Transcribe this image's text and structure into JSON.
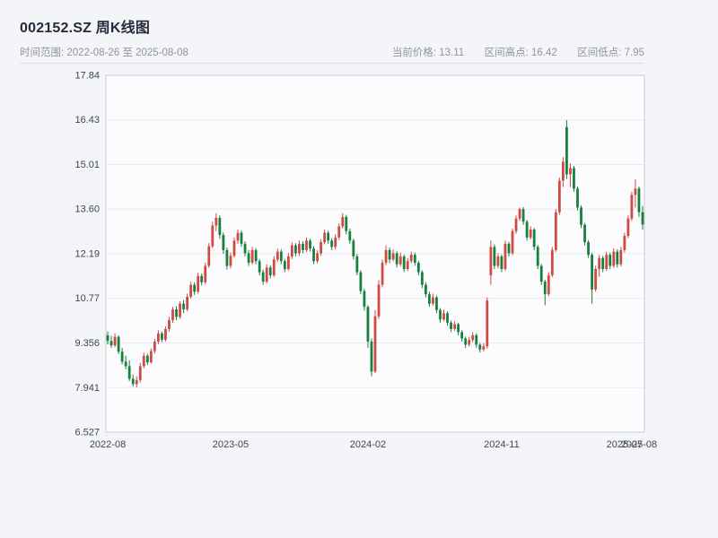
{
  "header": {
    "title": "002152.SZ 周K线图",
    "time_range": "时间范围: 2022-08-26 至 2025-08-08",
    "stats": {
      "current_price": "当前价格: 13.11",
      "range_high": "区间高点: 16.42",
      "range_low": "区间低点: 7.95"
    }
  },
  "chart_data": {
    "type": "candlestick",
    "symbol": "002152.SZ",
    "interval": "weekly",
    "title": "002152.SZ 周K线图",
    "date_range": [
      "2022-08-26",
      "2025-08-08"
    ],
    "current_price": 13.11,
    "range_high": 16.42,
    "range_low": 7.95,
    "y_min": 6.527,
    "y_max": 17.84,
    "y_ticks": [
      "6.527",
      "7.941",
      "9.356",
      "10.77",
      "12.19",
      "13.60",
      "15.01",
      "16.43",
      "17.84"
    ],
    "x_ticks": [
      {
        "label": "2022-08",
        "index": 0
      },
      {
        "label": "2023-05",
        "index": 34
      },
      {
        "label": "2024-02",
        "index": 72
      },
      {
        "label": "2024-11",
        "index": 109
      },
      {
        "label": "2025-07",
        "index": 143
      },
      {
        "label": "2025-08",
        "index": 147
      }
    ],
    "grid": true,
    "legend": false,
    "colors": {
      "up": "#cf4a42",
      "down": "#17803f",
      "grid": "#e9eaf1",
      "plot_bg": "#fcfcfe",
      "plot_border": "#c7cbd5"
    },
    "columns": [
      "date",
      "open",
      "high",
      "low",
      "close"
    ],
    "candles": [
      [
        "2022-08-26",
        9.6,
        9.72,
        9.31,
        9.42
      ],
      [
        "2022-09-02",
        9.42,
        9.58,
        9.2,
        9.28
      ],
      [
        "2022-09-09",
        9.28,
        9.66,
        9.22,
        9.55
      ],
      [
        "2022-09-16",
        9.55,
        9.6,
        9.0,
        9.08
      ],
      [
        "2022-09-23",
        9.08,
        9.2,
        8.68,
        8.76
      ],
      [
        "2022-09-30",
        8.76,
        8.95,
        8.52,
        8.62
      ],
      [
        "2022-10-14",
        8.62,
        8.8,
        8.15,
        8.22
      ],
      [
        "2022-10-21",
        8.22,
        8.35,
        7.98,
        8.05
      ],
      [
        "2022-10-28",
        8.05,
        8.3,
        7.95,
        8.18
      ],
      [
        "2022-11-04",
        8.18,
        8.72,
        8.1,
        8.62
      ],
      [
        "2022-11-11",
        8.62,
        9.05,
        8.55,
        8.95
      ],
      [
        "2022-11-18",
        8.95,
        9.02,
        8.66,
        8.74
      ],
      [
        "2022-11-25",
        8.74,
        9.18,
        8.7,
        9.1
      ],
      [
        "2022-12-02",
        9.1,
        9.48,
        9.02,
        9.4
      ],
      [
        "2022-12-09",
        9.4,
        9.76,
        9.32,
        9.66
      ],
      [
        "2022-12-16",
        9.66,
        9.72,
        9.38,
        9.46
      ],
      [
        "2022-12-23",
        9.46,
        9.88,
        9.4,
        9.8
      ],
      [
        "2022-12-30",
        9.8,
        10.18,
        9.72,
        10.08
      ],
      [
        "2023-01-06",
        10.08,
        10.5,
        10.0,
        10.42
      ],
      [
        "2023-01-13",
        10.42,
        10.52,
        10.08,
        10.18
      ],
      [
        "2023-01-20",
        10.18,
        10.68,
        10.12,
        10.6
      ],
      [
        "2023-02-03",
        10.6,
        10.72,
        10.3,
        10.42
      ],
      [
        "2023-02-10",
        10.42,
        10.92,
        10.36,
        10.82
      ],
      [
        "2023-02-17",
        10.82,
        11.3,
        10.76,
        11.2
      ],
      [
        "2023-02-24",
        11.2,
        11.28,
        10.88,
        10.98
      ],
      [
        "2023-03-03",
        10.98,
        11.58,
        10.92,
        11.48
      ],
      [
        "2023-03-10",
        11.48,
        11.56,
        11.18,
        11.28
      ],
      [
        "2023-03-17",
        11.28,
        11.9,
        11.22,
        11.8
      ],
      [
        "2023-03-24",
        11.8,
        12.52,
        11.74,
        12.42
      ],
      [
        "2023-03-31",
        12.42,
        13.2,
        12.36,
        13.08
      ],
      [
        "2023-04-07",
        13.08,
        13.47,
        12.9,
        13.32
      ],
      [
        "2023-04-14",
        13.32,
        13.4,
        12.66,
        12.78
      ],
      [
        "2023-04-21",
        12.78,
        12.86,
        12.18,
        12.3
      ],
      [
        "2023-04-28",
        12.3,
        12.38,
        11.68,
        11.8
      ],
      [
        "2023-05-05",
        11.8,
        12.22,
        11.72,
        12.12
      ],
      [
        "2023-05-12",
        12.12,
        12.7,
        12.06,
        12.6
      ],
      [
        "2023-05-19",
        12.6,
        12.95,
        12.5,
        12.85
      ],
      [
        "2023-05-26",
        12.85,
        12.92,
        12.4,
        12.5
      ],
      [
        "2023-06-02",
        12.5,
        12.58,
        12.1,
        12.2
      ],
      [
        "2023-06-09",
        12.2,
        12.3,
        11.8,
        11.9
      ],
      [
        "2023-06-16",
        11.9,
        12.4,
        11.84,
        12.3
      ],
      [
        "2023-06-21",
        12.3,
        12.36,
        11.85,
        11.95
      ],
      [
        "2023-06-30",
        11.95,
        12.02,
        11.5,
        11.6
      ],
      [
        "2023-07-07",
        11.6,
        11.68,
        11.2,
        11.3
      ],
      [
        "2023-07-14",
        11.3,
        11.85,
        11.24,
        11.75
      ],
      [
        "2023-07-21",
        11.75,
        11.82,
        11.4,
        11.5
      ],
      [
        "2023-07-28",
        11.5,
        12.1,
        11.44,
        12.0
      ],
      [
        "2023-08-04",
        12.0,
        12.35,
        11.92,
        12.25
      ],
      [
        "2023-08-11",
        12.25,
        12.32,
        11.85,
        11.95
      ],
      [
        "2023-08-18",
        11.95,
        12.02,
        11.6,
        11.7
      ],
      [
        "2023-08-25",
        11.7,
        12.2,
        11.64,
        12.1
      ],
      [
        "2023-09-01",
        12.1,
        12.55,
        12.02,
        12.45
      ],
      [
        "2023-09-08",
        12.45,
        12.52,
        12.1,
        12.2
      ],
      [
        "2023-09-15",
        12.2,
        12.6,
        12.12,
        12.5
      ],
      [
        "2023-09-22",
        12.5,
        12.58,
        12.2,
        12.3
      ],
      [
        "2023-09-28",
        12.3,
        12.7,
        12.24,
        12.6
      ],
      [
        "2023-10-13",
        12.6,
        12.66,
        12.25,
        12.35
      ],
      [
        "2023-10-20",
        12.35,
        12.42,
        11.85,
        11.95
      ],
      [
        "2023-10-27",
        11.95,
        12.3,
        11.88,
        12.2
      ],
      [
        "2023-11-03",
        12.2,
        12.65,
        12.12,
        12.55
      ],
      [
        "2023-11-10",
        12.55,
        12.95,
        12.48,
        12.85
      ],
      [
        "2023-11-17",
        12.85,
        12.92,
        12.5,
        12.6
      ],
      [
        "2023-11-24",
        12.6,
        12.68,
        12.3,
        12.4
      ],
      [
        "2023-12-01",
        12.4,
        12.8,
        12.32,
        12.7
      ],
      [
        "2023-12-08",
        12.7,
        13.15,
        12.62,
        13.05
      ],
      [
        "2023-12-15",
        13.05,
        13.47,
        12.98,
        13.35
      ],
      [
        "2023-12-22",
        13.35,
        13.42,
        12.8,
        12.9
      ],
      [
        "2023-12-29",
        12.9,
        12.98,
        12.5,
        12.6
      ],
      [
        "2024-01-05",
        12.6,
        12.66,
        12.0,
        12.1
      ],
      [
        "2024-01-12",
        12.1,
        12.18,
        11.5,
        11.6
      ],
      [
        "2024-01-19",
        11.6,
        11.66,
        10.9,
        11.0
      ],
      [
        "2024-01-26",
        11.0,
        11.08,
        10.38,
        10.5
      ],
      [
        "2024-02-02",
        10.5,
        10.55,
        9.2,
        9.4
      ],
      [
        "2024-02-08",
        9.4,
        9.5,
        8.3,
        8.45
      ],
      [
        "2024-02-23",
        8.45,
        10.4,
        8.4,
        10.2
      ],
      [
        "2024-03-01",
        10.2,
        11.35,
        10.12,
        11.2
      ],
      [
        "2024-03-08",
        11.2,
        12.0,
        11.12,
        11.9
      ],
      [
        "2024-03-15",
        11.9,
        12.45,
        11.82,
        12.3
      ],
      [
        "2024-03-22",
        12.3,
        12.38,
        11.88,
        12.0
      ],
      [
        "2024-03-29",
        12.0,
        12.32,
        11.94,
        12.2
      ],
      [
        "2024-04-03",
        12.2,
        12.26,
        11.75,
        11.85
      ],
      [
        "2024-04-12",
        11.85,
        12.22,
        11.78,
        12.1
      ],
      [
        "2024-04-19",
        12.1,
        12.16,
        11.6,
        11.7
      ],
      [
        "2024-04-26",
        11.7,
        12.05,
        11.64,
        11.95
      ],
      [
        "2024-04-30",
        11.95,
        12.25,
        11.88,
        12.15
      ],
      [
        "2024-05-10",
        12.15,
        12.22,
        11.8,
        11.9
      ],
      [
        "2024-05-17",
        11.9,
        11.96,
        11.5,
        11.6
      ],
      [
        "2024-05-24",
        11.6,
        11.66,
        11.1,
        11.2
      ],
      [
        "2024-05-31",
        11.2,
        11.28,
        10.8,
        10.9
      ],
      [
        "2024-06-07",
        10.9,
        10.98,
        10.5,
        10.6
      ],
      [
        "2024-06-14",
        10.6,
        10.92,
        10.54,
        10.8
      ],
      [
        "2024-06-21",
        10.8,
        10.86,
        10.3,
        10.4
      ],
      [
        "2024-06-28",
        10.4,
        10.46,
        10.0,
        10.1
      ],
      [
        "2024-07-05",
        10.1,
        10.42,
        10.04,
        10.3
      ],
      [
        "2024-07-12",
        10.3,
        10.36,
        9.9,
        10.0
      ],
      [
        "2024-07-19",
        10.0,
        10.06,
        9.7,
        9.8
      ],
      [
        "2024-07-26",
        9.8,
        10.05,
        9.74,
        9.95
      ],
      [
        "2024-08-02",
        9.95,
        10.0,
        9.6,
        9.7
      ],
      [
        "2024-08-09",
        9.7,
        9.76,
        9.4,
        9.5
      ],
      [
        "2024-08-16",
        9.5,
        9.56,
        9.2,
        9.3
      ],
      [
        "2024-08-23",
        9.3,
        9.55,
        9.24,
        9.45
      ],
      [
        "2024-08-30",
        9.45,
        9.7,
        9.38,
        9.6
      ],
      [
        "2024-09-06",
        9.6,
        9.66,
        9.2,
        9.3
      ],
      [
        "2024-09-13",
        9.3,
        9.36,
        9.05,
        9.15
      ],
      [
        "2024-09-20",
        9.15,
        9.35,
        9.08,
        9.25
      ],
      [
        "2024-09-27",
        9.25,
        10.8,
        9.18,
        10.7
      ],
      [
        "2024-10-11",
        11.5,
        12.6,
        11.2,
        12.4
      ],
      [
        "2024-10-18",
        12.4,
        12.48,
        11.7,
        11.8
      ],
      [
        "2024-10-25",
        11.8,
        12.2,
        11.72,
        12.1
      ],
      [
        "2024-11-01",
        12.1,
        12.16,
        11.6,
        11.7
      ],
      [
        "2024-11-08",
        11.7,
        12.6,
        11.64,
        12.5
      ],
      [
        "2024-11-15",
        12.5,
        12.56,
        12.1,
        12.2
      ],
      [
        "2024-11-22",
        12.2,
        12.98,
        12.14,
        12.9
      ],
      [
        "2024-11-29",
        12.9,
        13.4,
        12.82,
        13.3
      ],
      [
        "2024-12-06",
        13.3,
        13.65,
        13.22,
        13.6
      ],
      [
        "2024-12-13",
        13.6,
        13.66,
        13.1,
        13.2
      ],
      [
        "2024-12-20",
        13.2,
        13.26,
        12.6,
        12.7
      ],
      [
        "2024-12-27",
        12.7,
        13.05,
        12.64,
        12.95
      ],
      [
        "2025-01-03",
        12.95,
        13.0,
        12.3,
        12.4
      ],
      [
        "2025-01-10",
        12.4,
        12.46,
        11.7,
        11.8
      ],
      [
        "2025-01-17",
        11.8,
        11.86,
        11.2,
        11.3
      ],
      [
        "2025-01-24",
        11.3,
        11.36,
        10.55,
        10.9
      ],
      [
        "2025-02-07",
        10.9,
        11.6,
        10.84,
        11.5
      ],
      [
        "2025-02-14",
        11.5,
        12.4,
        11.44,
        12.3
      ],
      [
        "2025-02-21",
        12.3,
        13.6,
        12.24,
        13.5
      ],
      [
        "2025-02-28",
        13.5,
        14.6,
        13.42,
        14.5
      ],
      [
        "2025-03-07",
        14.5,
        15.25,
        14.3,
        15.1
      ],
      [
        "2025-03-14",
        16.2,
        16.42,
        14.55,
        14.7
      ],
      [
        "2025-03-21",
        14.7,
        15.05,
        14.3,
        14.9
      ],
      [
        "2025-03-28",
        14.9,
        14.97,
        14.15,
        14.25
      ],
      [
        "2025-04-03",
        14.25,
        14.32,
        13.55,
        13.65
      ],
      [
        "2025-04-11",
        13.65,
        13.72,
        13.0,
        13.1
      ],
      [
        "2025-04-18",
        13.1,
        13.16,
        12.45,
        12.55
      ],
      [
        "2025-04-25",
        12.55,
        12.62,
        12.05,
        12.15
      ],
      [
        "2025-04-30",
        12.15,
        12.22,
        10.6,
        11.05
      ],
      [
        "2025-05-09",
        11.05,
        11.8,
        10.98,
        11.7
      ],
      [
        "2025-05-16",
        11.7,
        12.15,
        11.45,
        12.05
      ],
      [
        "2025-05-23",
        12.05,
        12.12,
        11.6,
        11.7
      ],
      [
        "2025-05-30",
        11.7,
        12.25,
        11.64,
        12.15
      ],
      [
        "2025-06-06",
        12.15,
        12.22,
        11.7,
        11.8
      ],
      [
        "2025-06-13",
        11.8,
        12.35,
        11.74,
        12.25
      ],
      [
        "2025-06-20",
        12.25,
        12.32,
        11.75,
        11.85
      ],
      [
        "2025-06-27",
        11.85,
        12.4,
        11.78,
        12.3
      ],
      [
        "2025-07-04",
        12.3,
        12.85,
        12.22,
        12.75
      ],
      [
        "2025-07-11",
        12.75,
        13.4,
        12.68,
        13.3
      ],
      [
        "2025-07-18",
        13.3,
        14.15,
        13.22,
        14.05
      ],
      [
        "2025-07-25",
        14.05,
        14.55,
        13.65,
        14.25
      ],
      [
        "2025-08-01",
        14.25,
        14.32,
        13.35,
        13.5
      ],
      [
        "2025-08-08",
        13.5,
        13.7,
        12.95,
        13.11
      ]
    ]
  }
}
